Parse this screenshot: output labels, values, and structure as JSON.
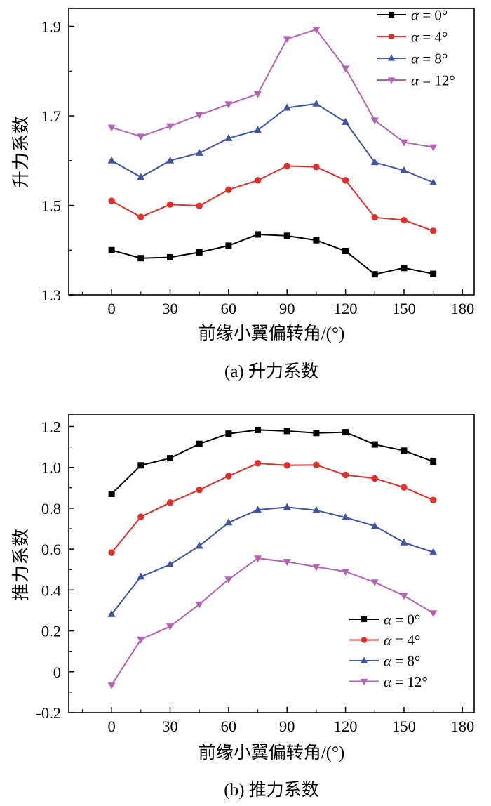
{
  "chart_data": [
    {
      "type": "line",
      "caption": "(a) 升力系数",
      "xlabel": "前缘小翼偏转角/(°)",
      "ylabel": "升力系数",
      "x": [
        0,
        15,
        30,
        45,
        60,
        75,
        90,
        105,
        120,
        135,
        150,
        165
      ],
      "xlim": [
        -22,
        186
      ],
      "ylim": [
        1.3,
        1.94
      ],
      "xticks": [
        0,
        30,
        60,
        90,
        120,
        150,
        180
      ],
      "x_minor_step": 15,
      "yticks": [
        1.3,
        1.5,
        1.7,
        1.9
      ],
      "ytick_labels": [
        "1.3",
        "1.5",
        "1.7",
        "1.9"
      ],
      "y_minor_step": 0.1,
      "grid": false,
      "legend_position": "top-right",
      "series": [
        {
          "name": "α = 0°",
          "marker": "square",
          "color": "#000000",
          "values": [
            1.4,
            1.382,
            1.384,
            1.395,
            1.41,
            1.435,
            1.432,
            1.422,
            1.398,
            1.346,
            1.36,
            1.347
          ]
        },
        {
          "name": "α = 4°",
          "marker": "circle",
          "color": "#dd2f2c",
          "values": [
            1.51,
            1.474,
            1.502,
            1.499,
            1.535,
            1.556,
            1.588,
            1.586,
            1.556,
            1.473,
            1.467,
            1.443
          ]
        },
        {
          "name": "α = 8°",
          "marker": "triangle-up",
          "color": "#3f53a0",
          "values": [
            1.6,
            1.563,
            1.6,
            1.617,
            1.65,
            1.668,
            1.718,
            1.727,
            1.686,
            1.596,
            1.578,
            1.551
          ]
        },
        {
          "name": "α = 12°",
          "marker": "triangle-down",
          "color": "#b463b4",
          "values": [
            1.674,
            1.654,
            1.677,
            1.702,
            1.726,
            1.749,
            1.872,
            1.893,
            1.806,
            1.69,
            1.641,
            1.63
          ]
        }
      ]
    },
    {
      "type": "line",
      "caption": "(b) 推力系数",
      "xlabel": "前缘小翼偏转角/(°)",
      "ylabel": "推力系数",
      "x": [
        0,
        15,
        30,
        45,
        60,
        75,
        90,
        105,
        120,
        135,
        150,
        165
      ],
      "xlim": [
        -22,
        186
      ],
      "ylim": [
        -0.2,
        1.26
      ],
      "xticks": [
        0,
        30,
        60,
        90,
        120,
        150,
        180
      ],
      "x_minor_step": 15,
      "yticks": [
        -0.2,
        0,
        0.2,
        0.4,
        0.6,
        0.8,
        1.0,
        1.2
      ],
      "ytick_labels": [
        "-0.2",
        "0",
        "0.2",
        "0.4",
        "0.6",
        "0.8",
        "1.0",
        "1.2"
      ],
      "y_minor_step": 0.1,
      "grid": false,
      "legend_position": "bottom-right",
      "series": [
        {
          "name": "α = 0°",
          "marker": "square",
          "color": "#000000",
          "values": [
            0.87,
            1.01,
            1.045,
            1.115,
            1.165,
            1.183,
            1.178,
            1.168,
            1.172,
            1.112,
            1.082,
            1.028
          ]
        },
        {
          "name": "α = 4°",
          "marker": "circle",
          "color": "#dd2f2c",
          "values": [
            0.583,
            0.758,
            0.828,
            0.89,
            0.958,
            1.02,
            1.01,
            1.012,
            0.963,
            0.946,
            0.902,
            0.84
          ]
        },
        {
          "name": "α = 8°",
          "marker": "triangle-up",
          "color": "#3f53a0",
          "values": [
            0.282,
            0.465,
            0.525,
            0.616,
            0.73,
            0.792,
            0.805,
            0.79,
            0.755,
            0.713,
            0.632,
            0.585
          ]
        },
        {
          "name": "α = 12°",
          "marker": "triangle-down",
          "color": "#b463b4",
          "values": [
            -0.065,
            0.158,
            0.222,
            0.33,
            0.452,
            0.555,
            0.538,
            0.513,
            0.49,
            0.438,
            0.372,
            0.287
          ]
        }
      ]
    }
  ]
}
